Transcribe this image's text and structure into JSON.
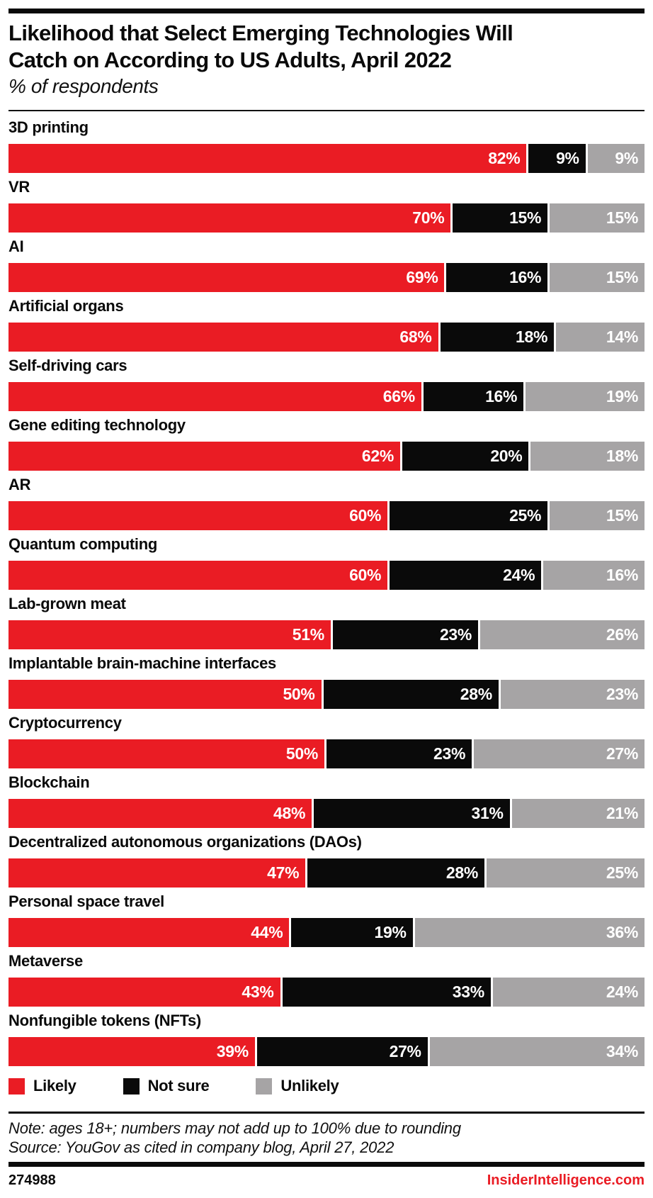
{
  "header": {
    "title": "Likelihood that Select Emerging Technologies Will\nCatch on According to US Adults, April 2022",
    "subtitle": "% of respondents"
  },
  "chart_data": {
    "type": "bar",
    "orientation": "horizontal-stacked",
    "title": "Likelihood that Select Emerging Technologies Will Catch on According to US Adults, April 2022",
    "subtitle": "% of respondents",
    "xlim": [
      0,
      100
    ],
    "value_suffix": "%",
    "grid": false,
    "legend_position": "bottom",
    "categories": [
      "3D printing",
      "VR",
      "AI",
      "Artificial organs",
      "Self-driving cars",
      "Gene editing technology",
      "AR",
      "Quantum computing",
      "Lab-grown meat",
      "Implantable brain-machine interfaces",
      "Cryptocurrency",
      "Blockchain",
      "Decentralized autonomous organizations (DAOs)",
      "Personal space travel",
      "Metaverse",
      "Nonfungible tokens (NFTs)"
    ],
    "series": [
      {
        "name": "Likely",
        "color": "#ea1c24",
        "values": [
          82,
          70,
          69,
          68,
          66,
          62,
          60,
          60,
          51,
          50,
          50,
          48,
          47,
          44,
          43,
          39
        ],
        "labels": [
          "82%",
          "70%",
          "69%",
          "68%",
          "66%",
          "62%",
          "60%",
          "60%",
          "51%",
          "50%",
          "50%",
          "48%",
          "47%",
          "44%",
          "43%",
          "39%"
        ]
      },
      {
        "name": "Not sure",
        "color": "#0a0a0a",
        "values": [
          9,
          15,
          16,
          18,
          16,
          20,
          25,
          24,
          23,
          28,
          23,
          31,
          28,
          19,
          33,
          27
        ],
        "labels": [
          "9%",
          "15%",
          "16%",
          "18%",
          "16%",
          "20%",
          "25%",
          "24%",
          "23%",
          "28%",
          "23%",
          "31%",
          "28%",
          "19%",
          "33%",
          "27%"
        ]
      },
      {
        "name": "Unlikely",
        "color": "#a6a4a5",
        "values": [
          9,
          15,
          15,
          14,
          19,
          18,
          15,
          16,
          26,
          23,
          27,
          21,
          25,
          36,
          24,
          34
        ],
        "labels": [
          "9%",
          "15%",
          "15%",
          "14%",
          "19%",
          "18%",
          "15%",
          "16%",
          "26%",
          "23%",
          "27%",
          "21%",
          "25%",
          "36%",
          "24%",
          "34%"
        ]
      }
    ]
  },
  "legend": {
    "items": [
      {
        "label": "Likely",
        "color": "#ea1c24"
      },
      {
        "label": "Not sure",
        "color": "#0a0a0a"
      },
      {
        "label": "Unlikely",
        "color": "#a6a4a5"
      }
    ]
  },
  "footer": {
    "note": "Note: ages 18+; numbers may not add up to 100% due to rounding",
    "source": "Source: YouGov as cited in company blog, April 27, 2022",
    "chart_id": "274988",
    "site": "InsiderIntelligence.com"
  },
  "colors": {
    "accent_red": "#ea1c24",
    "black": "#0a0a0a",
    "gray": "#a6a4a5",
    "background": "#ffffff",
    "bar_value_text": "#ffffff"
  }
}
